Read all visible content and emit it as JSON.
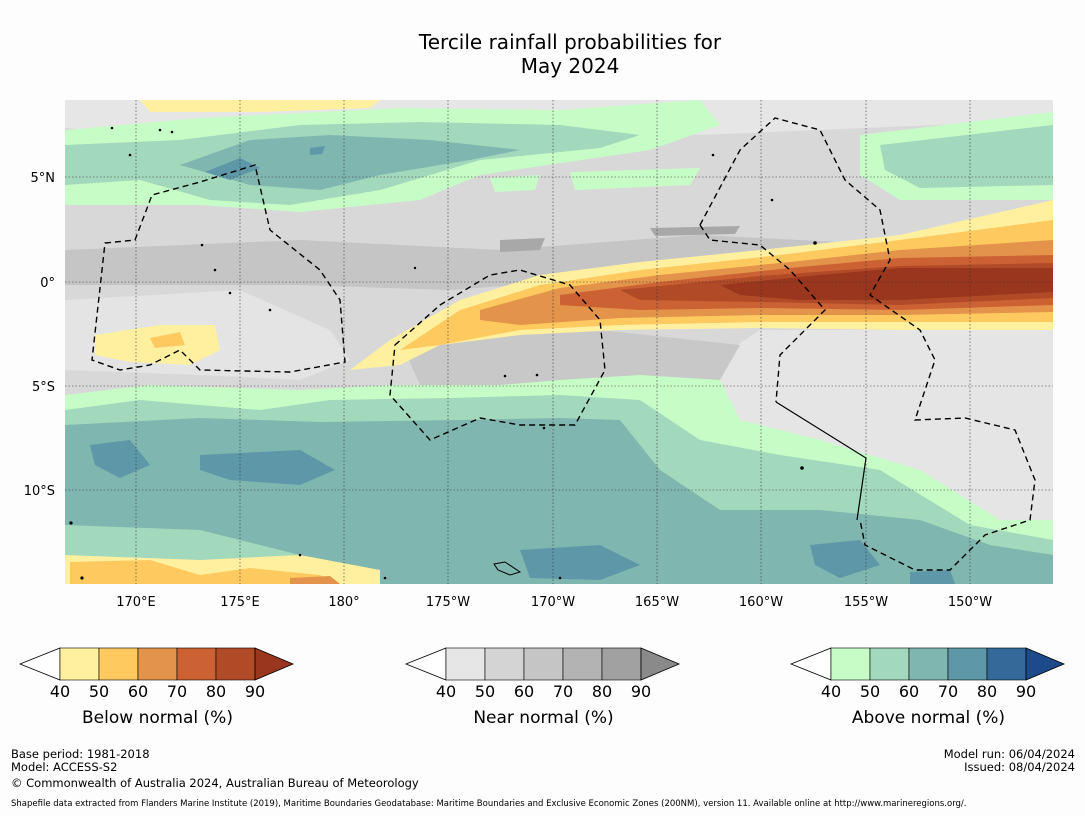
{
  "title_line1": "Tercile rainfall probabilities for",
  "title_line2": "May 2024",
  "lat_labels": [
    "5°N",
    "0°",
    "5°S",
    "10°S"
  ],
  "lon_labels": [
    "170°E",
    "175°E",
    "180°",
    "175°W",
    "170°W",
    "165°W",
    "160°W",
    "155°W",
    "150°W"
  ],
  "legends": [
    {
      "title": "Below normal (%)",
      "ticks": [
        "40",
        "50",
        "60",
        "70",
        "80",
        "90"
      ],
      "colors": [
        "#fff0a0",
        "#fec95f",
        "#e3934a",
        "#cc6233",
        "#b14a27",
        "#9a361d"
      ]
    },
    {
      "title": "Near normal (%)",
      "ticks": [
        "40",
        "50",
        "60",
        "70",
        "80",
        "90"
      ],
      "colors": [
        "#e6e6e6",
        "#d4d4d4",
        "#c5c5c5",
        "#b3b3b3",
        "#a1a1a1",
        "#8a8a8a"
      ]
    },
    {
      "title": "Above normal (%)",
      "ticks": [
        "40",
        "50",
        "60",
        "70",
        "80",
        "90"
      ],
      "colors": [
        "#c6fdc6",
        "#a2d8bb",
        "#80b6b0",
        "#5e97a7",
        "#346999",
        "#1c4a8a"
      ]
    }
  ],
  "footer": {
    "base_period": "Base period: 1981-2018",
    "model": "Model: ACCESS-S2",
    "copyright": "© Commonwealth of Australia 2024, Australian Bureau of Meteorology",
    "model_run": "Model run: 06/04/2024",
    "issued": "Issued: 08/04/2024",
    "shapefile": "Shapefile data extracted from Flanders Marine Institute (2019), Maritime Boundaries Geodatabase: Maritime Boundaries and Exclusive Economic Zones (200NM), version 11. Available online at http://www.marineregions.org/."
  },
  "map_colors": {
    "background": "#dcdcdc",
    "near_light": "#e6e6e6",
    "near_mid": "#c5c5c5",
    "near_dark": "#a8a8a8",
    "above_40": "#c6fdc6",
    "above_50": "#a2d8bb",
    "above_60": "#80b6b0",
    "above_70": "#5e97a7",
    "above_80": "#41769b",
    "below_40": "#fff0a0",
    "below_50": "#fec95f",
    "below_60": "#e3934a",
    "below_70": "#cc6233",
    "below_80": "#b14a27",
    "below_90": "#9a361d"
  }
}
